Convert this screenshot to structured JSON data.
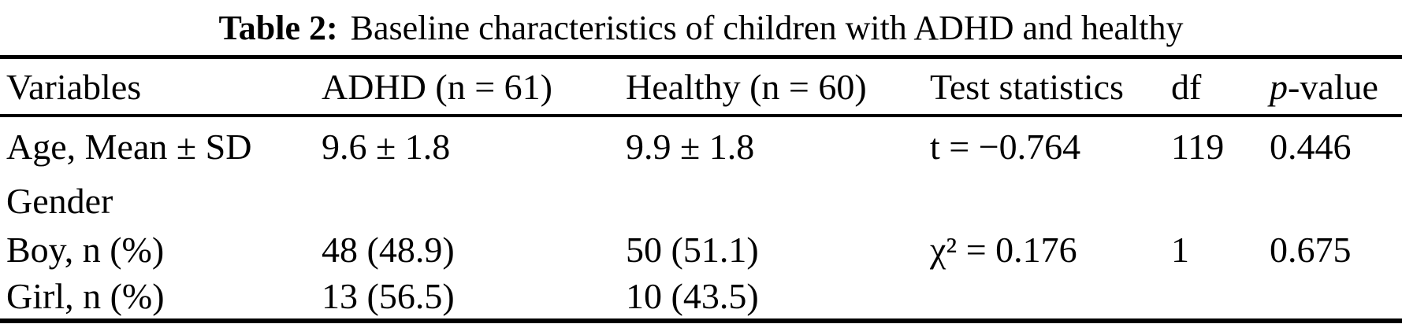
{
  "caption": {
    "label": "Table 2:",
    "text": "Baseline characteristics of children with ADHD and healthy"
  },
  "table": {
    "columns": [
      "Variables",
      "ADHD (n = 61)",
      "Healthy (n = 60)",
      "Test statistics",
      "df",
      "p-value"
    ],
    "rows": [
      [
        "Age, Mean ± SD",
        "9.6 ± 1.8",
        "9.9 ± 1.8",
        "t = −0.764",
        "119",
        "0.446"
      ],
      [
        "Gender",
        "",
        "",
        "",
        "",
        ""
      ],
      [
        "Boy, n (%)",
        "48 (48.9)",
        "50 (51.1)",
        "χ² = 0.176",
        "1",
        "0.675"
      ],
      [
        "Girl, n (%)",
        "13 (56.5)",
        "10 (43.5)",
        "",
        "",
        ""
      ]
    ]
  }
}
